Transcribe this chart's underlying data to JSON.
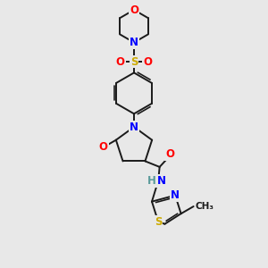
{
  "bg_color": "#e8e8e8",
  "bond_color": "#1a1a1a",
  "bond_width": 1.4,
  "atom_colors": {
    "O": "#ff0000",
    "N": "#0000ff",
    "S": "#ccaa00",
    "H": "#5a9a9a",
    "C": "#1a1a1a"
  },
  "font_size": 8.5
}
